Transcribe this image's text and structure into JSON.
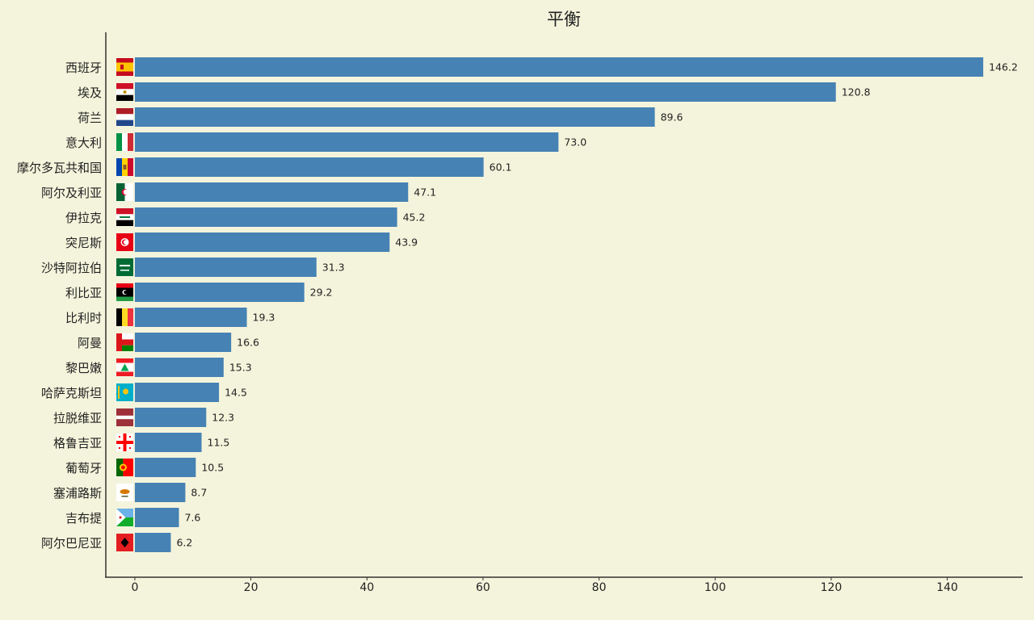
{
  "chart_data": {
    "type": "bar",
    "orientation": "horizontal",
    "title": "平衡",
    "xlabel": "",
    "ylabel": "",
    "xlim": [
      -5,
      153
    ],
    "xticks": [
      0,
      20,
      40,
      60,
      80,
      100,
      120,
      140
    ],
    "grid": false,
    "legend": "none",
    "bar_color": "#4682b4",
    "background": "#f4f4dc",
    "categories": [
      "西班牙",
      "埃及",
      "荷兰",
      "意大利",
      "摩尔多瓦共和国",
      "阿尔及利亚",
      "伊拉克",
      "突尼斯",
      "沙特阿拉伯",
      "利比亚",
      "比利时",
      "阿曼",
      "黎巴嫩",
      "哈萨克斯坦",
      "拉脱维亚",
      "格鲁吉亚",
      "葡萄牙",
      "塞浦路斯",
      "吉布提",
      "阿尔巴尼亚"
    ],
    "values": [
      146.2,
      120.8,
      89.6,
      73.0,
      60.1,
      47.1,
      45.2,
      43.9,
      31.3,
      29.2,
      19.3,
      16.6,
      15.3,
      14.5,
      12.3,
      11.5,
      10.5,
      8.7,
      7.6,
      6.2
    ],
    "value_labels": [
      "146.2",
      "120.8",
      "89.6",
      "73.0",
      "60.1",
      "47.1",
      "45.2",
      "43.9",
      "31.3",
      "29.2",
      "19.3",
      "16.6",
      "15.3",
      "14.5",
      "12.3",
      "11.5",
      "10.5",
      "8.7",
      "7.6",
      "6.2"
    ],
    "flags": [
      "spain-flag-icon",
      "egypt-flag-icon",
      "netherlands-flag-icon",
      "italy-flag-icon",
      "moldova-flag-icon",
      "algeria-flag-icon",
      "iraq-flag-icon",
      "tunisia-flag-icon",
      "saudi-arabia-flag-icon",
      "libya-flag-icon",
      "belgium-flag-icon",
      "oman-flag-icon",
      "lebanon-flag-icon",
      "kazakhstan-flag-icon",
      "latvia-flag-icon",
      "georgia-flag-icon",
      "portugal-flag-icon",
      "cyprus-flag-icon",
      "djibouti-flag-icon",
      "albania-flag-icon"
    ]
  }
}
